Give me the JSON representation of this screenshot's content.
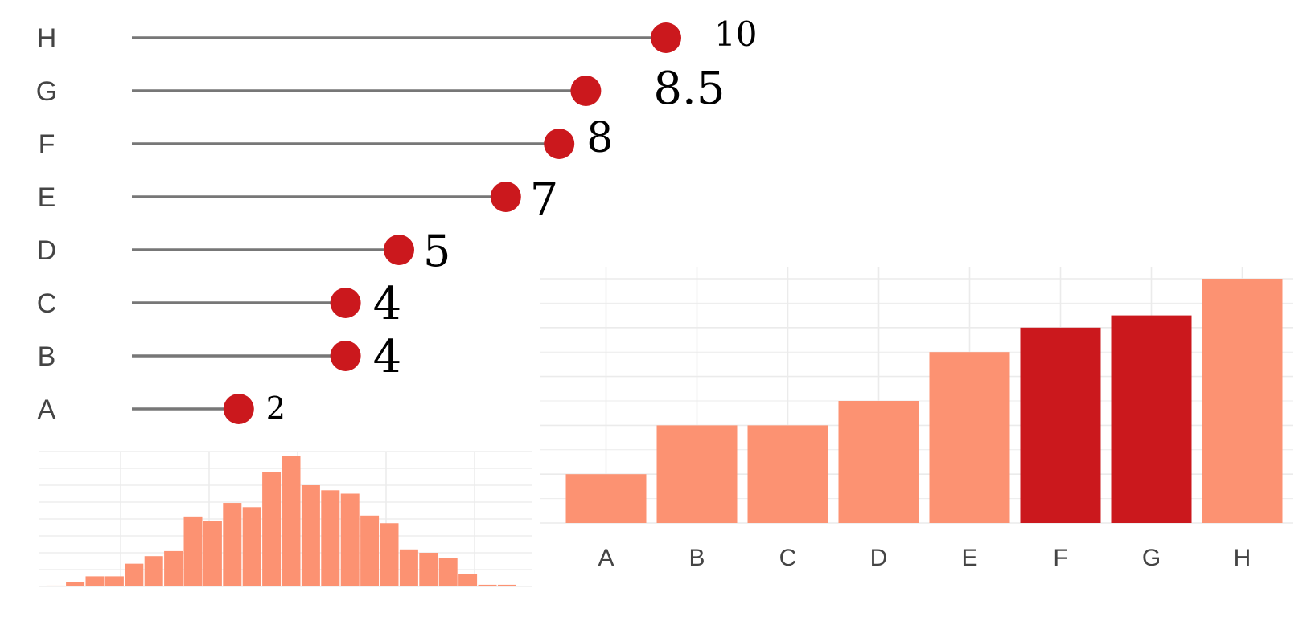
{
  "colors": {
    "lollipop_stem": "#777777",
    "lollipop_dot": "#cb181d",
    "bar_base": "#fc9272",
    "bar_highlight": "#cb181d",
    "grid": "#ebebeb",
    "text": "#444444"
  },
  "chart_data": [
    {
      "type": "lollipop",
      "categories": [
        "A",
        "B",
        "C",
        "D",
        "E",
        "F",
        "G",
        "H"
      ],
      "values": [
        2,
        4,
        4,
        5,
        7,
        8,
        8.5,
        10
      ],
      "value_labels": [
        "2",
        "4",
        "4",
        "5",
        "7",
        "8",
        "8.5",
        "10"
      ],
      "orientation": "horizontal",
      "xlim": [
        0,
        10
      ],
      "grid": false
    },
    {
      "type": "bar",
      "categories": [
        "A",
        "B",
        "C",
        "D",
        "E",
        "F",
        "G",
        "H"
      ],
      "values": [
        2,
        4,
        4,
        5,
        7,
        8,
        8.5,
        10
      ],
      "highlighted": [
        "F",
        "G"
      ],
      "ylim": [
        0,
        10
      ],
      "grid": true
    },
    {
      "type": "histogram",
      "bins": 24,
      "counts": [
        1,
        5,
        12,
        12,
        27,
        36,
        42,
        83,
        78,
        99,
        94,
        136,
        155,
        120,
        114,
        110,
        84,
        75,
        44,
        40,
        34,
        15,
        2,
        2
      ],
      "ylim": [
        0,
        160
      ],
      "grid": true
    }
  ]
}
